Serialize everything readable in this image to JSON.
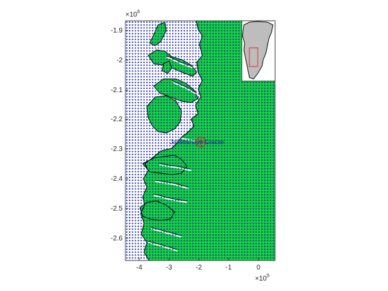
{
  "figure": {
    "annotation": "Jakobshavn Glacier",
    "colors": {
      "land": "#12d63a",
      "ocean": "#ffffff",
      "grid_dots": "#1f2a9c",
      "coastline": "#000000",
      "marker": "#cc2a2a",
      "inset_land": "#bdbdbd",
      "inset_box": "#e03030"
    },
    "axes": {
      "x_ticks": [
        "-4",
        "-3",
        "-2",
        "-1",
        "0"
      ],
      "y_ticks": [
        "-1.9",
        "-2",
        "-2.1",
        "-2.2",
        "-2.3",
        "-2.4",
        "-2.5",
        "-2.6"
      ],
      "x_multiplier_base": "×10",
      "x_multiplier_exp": "5",
      "y_multiplier_base": "×10",
      "y_multiplier_exp": "6",
      "x_range": [
        -450000,
        50000
      ],
      "y_range": [
        -2665000,
        -1870000
      ]
    }
  }
}
